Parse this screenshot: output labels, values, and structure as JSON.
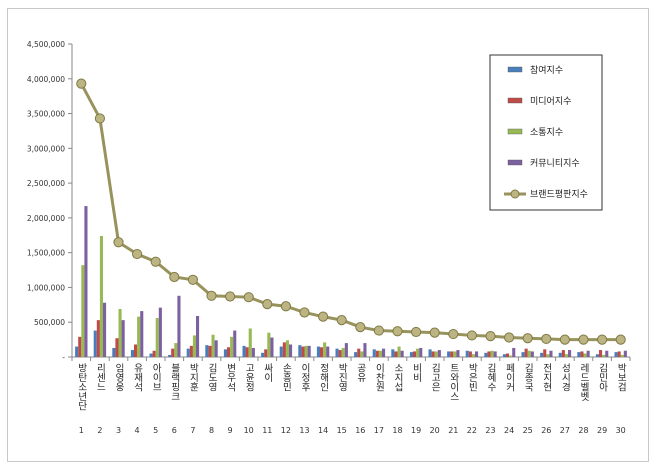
{
  "chart_data": {
    "type": "bar",
    "categories": [
      "방탄소년단",
      "리센느",
      "임영웅",
      "유재석",
      "아이브",
      "블랙핑크",
      "박지훈",
      "김도영",
      "변우석",
      "고윤정",
      "싸이",
      "손흥민",
      "이정후",
      "정해인",
      "박진영",
      "공유",
      "이찬원",
      "소지섭",
      "비비",
      "김고은",
      "트와이스",
      "박은빈",
      "김혜수",
      "페이커",
      "김종국",
      "전지현",
      "성시경",
      "레드벨벳",
      "김민아",
      "박보검"
    ],
    "ranks": [
      "1",
      "2",
      "3",
      "4",
      "5",
      "6",
      "7",
      "8",
      "9",
      "10",
      "11",
      "12",
      "13",
      "14",
      "15",
      "16",
      "17",
      "18",
      "19",
      "20",
      "21",
      "22",
      "23",
      "24",
      "25",
      "26",
      "27",
      "28",
      "29",
      "30"
    ],
    "yticks": [
      "-",
      "500,000",
      "1,000,000",
      "1,500,000",
      "2,000,000",
      "2,500,000",
      "3,000,000",
      "3,500,000",
      "4,000,000",
      "4,500,000"
    ],
    "ylim": [
      0,
      4500000
    ],
    "series": [
      {
        "name": "참여지수",
        "type": "bar",
        "color": "#4a7ebb",
        "values": [
          150000,
          380000,
          130000,
          100000,
          50000,
          30000,
          120000,
          170000,
          110000,
          160000,
          60000,
          150000,
          170000,
          150000,
          120000,
          70000,
          110000,
          110000,
          70000,
          110000,
          80000,
          90000,
          60000,
          40000,
          70000,
          60000,
          60000,
          70000,
          40000,
          70000
        ]
      },
      {
        "name": "미디어지수",
        "type": "bar",
        "color": "#be4b48",
        "values": [
          290000,
          530000,
          270000,
          180000,
          90000,
          120000,
          160000,
          160000,
          140000,
          140000,
          110000,
          210000,
          150000,
          140000,
          100000,
          120000,
          90000,
          80000,
          80000,
          80000,
          80000,
          80000,
          80000,
          50000,
          120000,
          110000,
          100000,
          80000,
          100000,
          80000
        ]
      },
      {
        "name": "소통지수",
        "type": "bar",
        "color": "#98b954",
        "values": [
          1320000,
          1740000,
          690000,
          580000,
          560000,
          200000,
          310000,
          320000,
          290000,
          410000,
          350000,
          240000,
          160000,
          210000,
          130000,
          80000,
          90000,
          150000,
          120000,
          80000,
          80000,
          40000,
          90000,
          20000,
          90000,
          40000,
          40000,
          50000,
          30000,
          30000
        ]
      },
      {
        "name": "커뮤니티지수",
        "type": "bar",
        "color": "#7d60a0",
        "values": [
          2170000,
          780000,
          530000,
          660000,
          710000,
          880000,
          590000,
          240000,
          380000,
          130000,
          280000,
          180000,
          160000,
          150000,
          200000,
          200000,
          120000,
          90000,
          130000,
          100000,
          100000,
          80000,
          80000,
          130000,
          80000,
          90000,
          100000,
          90000,
          90000,
          90000
        ]
      },
      {
        "name": "브랜드평판지수",
        "type": "line",
        "color": "#98935c",
        "marker_color": "#bcb482",
        "values": [
          3930000,
          3430000,
          1650000,
          1480000,
          1370000,
          1150000,
          1110000,
          880000,
          870000,
          860000,
          760000,
          730000,
          640000,
          580000,
          530000,
          430000,
          380000,
          370000,
          360000,
          350000,
          330000,
          310000,
          300000,
          280000,
          270000,
          260000,
          250000,
          250000,
          250000,
          250000
        ]
      }
    ],
    "legend": "top-right",
    "grid": false
  }
}
